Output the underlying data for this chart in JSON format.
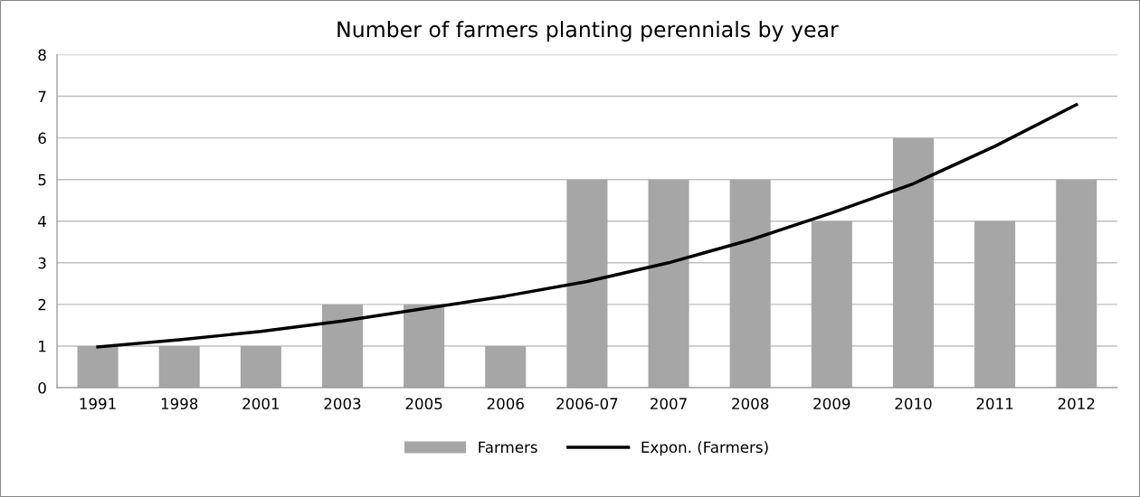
{
  "chart_data": {
    "type": "bar",
    "title": "Number of farmers planting perennials by year",
    "categories": [
      "1991",
      "1998",
      "2001",
      "2003",
      "2005",
      "2006",
      "2006-07",
      "2007",
      "2008",
      "2009",
      "2010",
      "2011",
      "2012"
    ],
    "series": [
      {
        "name": "Farmers",
        "color": "#a6a6a6",
        "values": [
          1,
          1,
          1,
          2,
          2,
          1,
          5,
          5,
          5,
          4,
          6,
          4,
          5
        ]
      },
      {
        "name": "Expon. (Farmers)",
        "type": "line",
        "color": "#000000",
        "values": [
          0.98,
          1.15,
          1.35,
          1.6,
          1.9,
          2.2,
          2.55,
          3.0,
          3.55,
          4.2,
          4.9,
          5.8,
          6.8
        ]
      }
    ],
    "ylim": [
      0,
      8
    ],
    "yticks": [
      0,
      1,
      2,
      3,
      4,
      5,
      6,
      7,
      8
    ],
    "grid": "y",
    "legend": "bottom",
    "marker": "none",
    "line_style": "solid"
  }
}
